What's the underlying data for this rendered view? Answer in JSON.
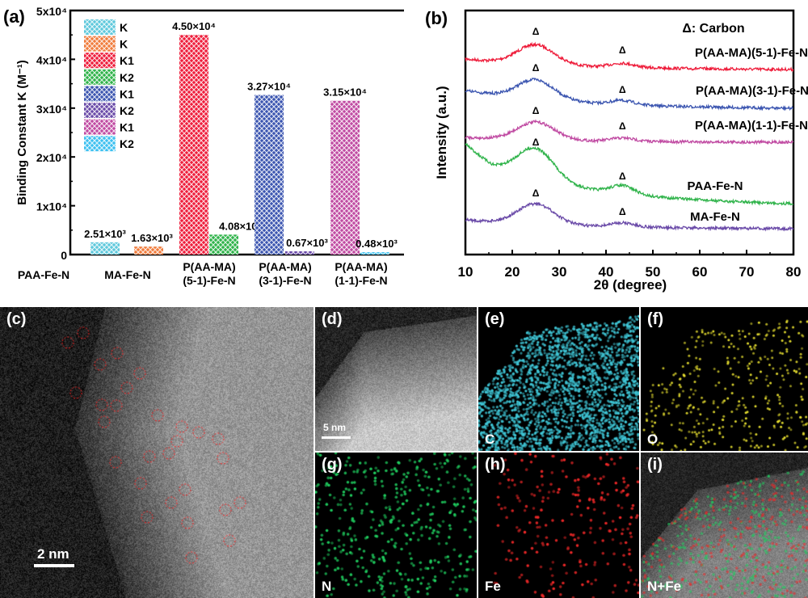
{
  "chart_data": [
    {
      "panel_label": "(a)",
      "type": "bar",
      "ylabel": "Binding Constant K (M⁻¹)",
      "ylim": [
        0,
        50000
      ],
      "yticks": [
        "0",
        "1x10⁴",
        "2x10⁴",
        "3x10⁴",
        "4x10⁴",
        "5x10⁴"
      ],
      "categories": [
        "PAA-Fe-N",
        "MA-Fe-N",
        "P(AA-MA)|(5-1)-Fe-N",
        "P(AA-MA)|(3-1)-Fe-N",
        "P(AA-MA)|(1-1)-Fe-N"
      ],
      "bars": [
        {
          "category": 0,
          "legend": "K",
          "value": 2510,
          "label": "2.51×10³",
          "color": "#5ec8dc"
        },
        {
          "category": 1,
          "legend": "K",
          "value": 1630,
          "label": "1.63×10³",
          "color": "#f07c3c"
        },
        {
          "category": 2,
          "legend": "K1",
          "value": 45000,
          "label": "4.50×10⁴",
          "color": "#ee1c3a"
        },
        {
          "category": 2,
          "legend": "K2",
          "value": 4080,
          "label": "4.08×10³",
          "color": "#2fb34a"
        },
        {
          "category": 3,
          "legend": "K1",
          "value": 32700,
          "label": "3.27×10⁴",
          "color": "#3b55b0"
        },
        {
          "category": 3,
          "legend": "K2",
          "value": 670,
          "label": "0.67×10³",
          "color": "#6a4aa8"
        },
        {
          "category": 4,
          "legend": "K1",
          "value": 31500,
          "label": "3.15×10⁴",
          "color": "#c04aa2"
        },
        {
          "category": 4,
          "legend": "K2",
          "value": 480,
          "label": "0.48×10³",
          "color": "#3cc0f0"
        }
      ],
      "legend_placement": "top-left"
    },
    {
      "panel_label": "(b)",
      "type": "line",
      "xlabel": "2θ (degree)",
      "ylabel": "Intensity (a.u.)",
      "xlim": [
        10,
        80
      ],
      "xticks": [
        10,
        20,
        30,
        40,
        50,
        60,
        70,
        80
      ],
      "annotation": "Δ: Carbon",
      "peak_marker": "Δ",
      "peaks": [
        25,
        43.5
      ],
      "series": [
        {
          "name": "P(AA-MA)(5-1)-Fe-N",
          "color": "#ee1c3a"
        },
        {
          "name": "P(AA-MA)(3-1)-Fe-N",
          "color": "#3b55b0"
        },
        {
          "name": "P(AA-MA)(1-1)-Fe-N",
          "color": "#c04aa2"
        },
        {
          "name": "PAA-Fe-N",
          "color": "#2fb34a"
        },
        {
          "name": "MA-Fe-N",
          "color": "#6a4aa8"
        }
      ]
    }
  ],
  "images": {
    "c": {
      "label": "(c)",
      "scale": "2 nm"
    },
    "d": {
      "label": "(d)",
      "scale": "5 nm"
    },
    "e": {
      "label": "(e)",
      "element": "C",
      "color": "#40c8d8"
    },
    "f": {
      "label": "(f)",
      "element": "O",
      "color": "#e8e030"
    },
    "g": {
      "label": "(g)",
      "element": "N",
      "color": "#20d060"
    },
    "h": {
      "label": "(h)",
      "element": "Fe",
      "color": "#f02828"
    },
    "i": {
      "label": "(i)",
      "element": "N+Fe"
    }
  }
}
